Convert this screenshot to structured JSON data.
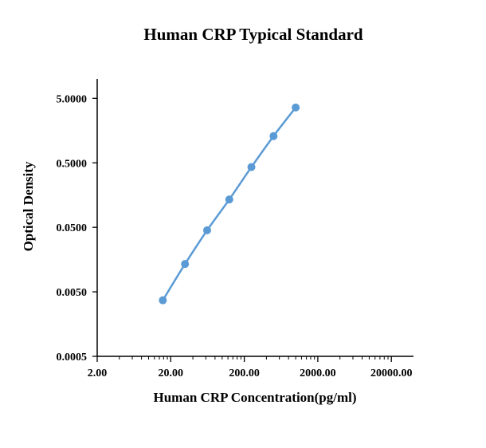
{
  "chart_data": {
    "type": "scatter",
    "title": "Human CRP Typical Standard",
    "xlabel": "Human CRP Concentration(pg/ml)",
    "ylabel": "Optical Density",
    "x_scale": "log",
    "y_scale": "log",
    "xlim": [
      2,
      40000
    ],
    "ylim": [
      0.0005,
      10
    ],
    "x_ticks": [
      "2.00",
      "20.00",
      "200.00",
      "2000.00",
      "20000.00"
    ],
    "y_ticks": [
      "0.0005",
      "0.0050",
      "0.0500",
      "0.5000",
      "5.0000"
    ],
    "grid": false,
    "legend": "none",
    "series": [
      {
        "color": "#5b9bd5",
        "line": "smooth",
        "x": [
          15.6,
          31.25,
          62.5,
          125,
          250,
          500,
          1000
        ],
        "y": [
          0.0037,
          0.0135,
          0.045,
          0.135,
          0.43,
          1.3,
          3.6
        ]
      }
    ]
  }
}
